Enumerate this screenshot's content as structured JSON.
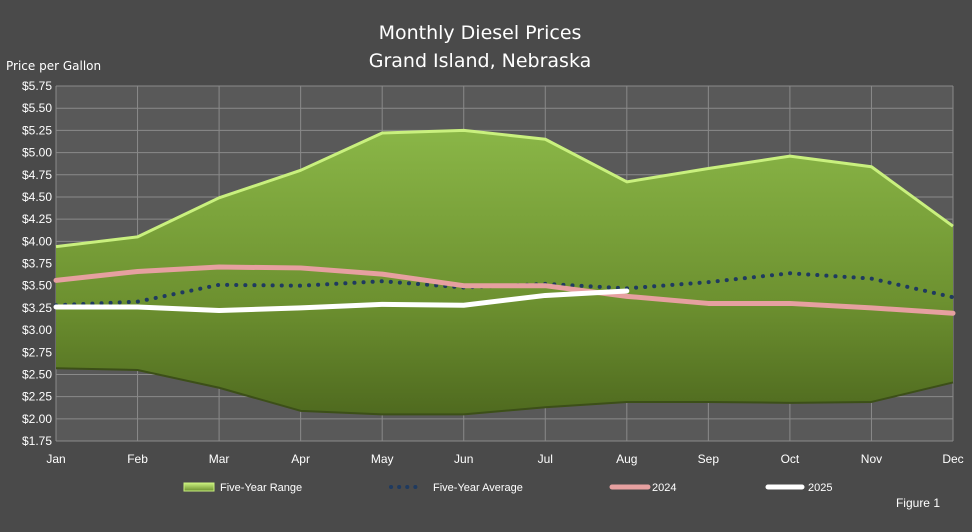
{
  "chart_data": {
    "type": "area",
    "title": "Monthly Diesel Prices",
    "subtitle": "Grand Island, Nebraska",
    "ylabel": "Price per Gallon",
    "xlabel": "",
    "categories": [
      "Jan",
      "Feb",
      "Mar",
      "Apr",
      "May",
      "Jun",
      "Jul",
      "Aug",
      "Sep",
      "Oct",
      "Nov",
      "Dec"
    ],
    "ylim": [
      1.75,
      5.75
    ],
    "yticks": [
      1.75,
      2.0,
      2.25,
      2.5,
      2.75,
      3.0,
      3.25,
      3.5,
      3.75,
      4.0,
      4.25,
      4.5,
      4.75,
      5.0,
      5.25,
      5.5,
      5.75
    ],
    "ytick_labels": [
      "$1.75",
      "$2.00",
      "$2.25",
      "$2.50",
      "$2.75",
      "$3.00",
      "$3.25",
      "$3.50",
      "$3.75",
      "$4.00",
      "$4.25",
      "$4.50",
      "$4.75",
      "$5.00",
      "$5.25",
      "$5.50",
      "$5.75"
    ],
    "grid": true,
    "legend_position": "bottom",
    "range": {
      "name": "Five-Year Range",
      "high": [
        3.94,
        4.05,
        4.49,
        4.8,
        5.22,
        5.25,
        5.15,
        4.67,
        4.82,
        4.96,
        4.84,
        4.17
      ],
      "low": [
        2.57,
        2.55,
        2.35,
        2.09,
        2.05,
        2.05,
        2.13,
        2.19,
        2.19,
        2.18,
        2.19,
        2.41
      ]
    },
    "series": [
      {
        "name": "Five-Year Average",
        "style": "dotted",
        "values": [
          3.28,
          3.32,
          3.51,
          3.5,
          3.55,
          3.48,
          3.52,
          3.47,
          3.54,
          3.64,
          3.58,
          3.37
        ]
      },
      {
        "name": "2024",
        "style": "solid",
        "values": [
          3.56,
          3.66,
          3.71,
          3.7,
          3.63,
          3.5,
          3.5,
          3.38,
          3.3,
          3.3,
          3.25,
          3.19
        ]
      },
      {
        "name": "2025",
        "style": "solid",
        "values": [
          3.26,
          3.26,
          3.22,
          3.25,
          3.29,
          3.28,
          3.39,
          3.44,
          null,
          null,
          null,
          null
        ]
      }
    ],
    "colors": {
      "background": "#4a4a4a",
      "plot_background": "#595959",
      "gridline": "#8a8a8a",
      "range_fill_light": "#8ab647",
      "range_fill_dark": "#4f6a1f",
      "range_edge": "#c9f07e",
      "average": "#1f3a5f",
      "y2024": "#e6a0a0",
      "y2025": "#ffffff"
    },
    "figure_label": "Figure 1"
  }
}
